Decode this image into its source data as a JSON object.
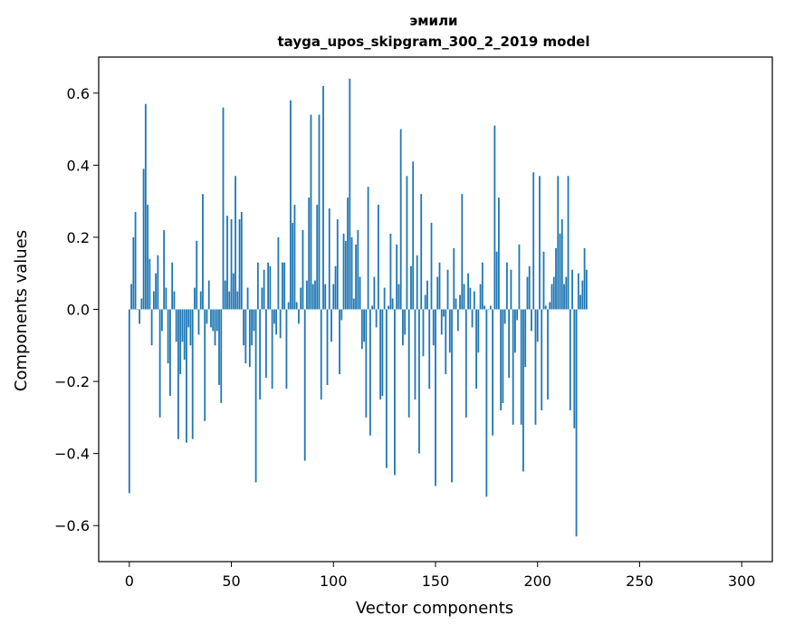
{
  "chart_data": {
    "type": "bar",
    "title": "эмили",
    "subtitle": "tayga_upos_skipgram_300_2_2019 model",
    "xlabel": "Vector components",
    "ylabel": "Components values",
    "xlim": [
      -15,
      315
    ],
    "ylim": [
      -0.7,
      0.7
    ],
    "xticks": [
      0,
      50,
      100,
      150,
      200,
      250,
      300
    ],
    "yticks": [
      -0.6,
      -0.4,
      -0.2,
      0.0,
      0.2,
      0.4,
      0.6
    ],
    "xtick_labels": [
      "0",
      "50",
      "100",
      "150",
      "200",
      "250",
      "300"
    ],
    "ytick_labels": [
      "−0.6",
      "−0.4",
      "−0.2",
      "0.0",
      "0.2",
      "0.4",
      "0.6"
    ],
    "grid": false,
    "bar_color": "#1f77b4",
    "values": [
      -0.51,
      0.07,
      0.2,
      0.27,
      0.0,
      -0.04,
      0.03,
      0.39,
      0.57,
      0.29,
      0.14,
      -0.1,
      0.05,
      0.1,
      0.15,
      -0.3,
      -0.06,
      0.22,
      0.06,
      -0.15,
      -0.24,
      0.13,
      0.05,
      -0.09,
      -0.36,
      -0.18,
      -0.09,
      -0.14,
      -0.37,
      -0.05,
      -0.1,
      -0.36,
      0.06,
      0.19,
      -0.07,
      0.05,
      0.32,
      -0.31,
      -0.04,
      0.08,
      -0.05,
      -0.06,
      -0.1,
      -0.06,
      -0.21,
      -0.26,
      0.56,
      0.08,
      0.26,
      0.05,
      0.25,
      0.1,
      0.37,
      0.05,
      0.25,
      0.27,
      -0.1,
      -0.15,
      0.06,
      -0.16,
      -0.1,
      -0.06,
      -0.48,
      0.13,
      -0.25,
      0.06,
      0.11,
      -0.19,
      0.13,
      0.12,
      -0.22,
      -0.04,
      -0.07,
      0.2,
      -0.08,
      0.13,
      0.13,
      -0.22,
      0.02,
      0.58,
      0.24,
      0.29,
      0.02,
      -0.04,
      0.06,
      0.22,
      -0.42,
      0.08,
      0.31,
      0.54,
      0.07,
      0.08,
      0.29,
      0.54,
      -0.25,
      0.62,
      0.07,
      -0.21,
      0.28,
      -0.09,
      0.07,
      0.12,
      0.25,
      -0.18,
      -0.03,
      0.21,
      0.19,
      0.31,
      0.64,
      0.2,
      0.03,
      0.18,
      0.22,
      0.09,
      -0.11,
      -0.09,
      -0.3,
      0.34,
      -0.35,
      0.01,
      0.09,
      -0.05,
      0.29,
      -0.25,
      -0.24,
      0.06,
      -0.44,
      0.01,
      0.21,
      0.03,
      -0.46,
      0.18,
      0.07,
      0.5,
      -0.1,
      -0.07,
      0.37,
      -0.3,
      0.12,
      0.41,
      -0.25,
      0.15,
      -0.4,
      0.32,
      -0.13,
      0.04,
      0.08,
      -0.22,
      0.24,
      -0.1,
      -0.49,
      0.09,
      0.13,
      -0.07,
      -0.02,
      -0.18,
      0.11,
      -0.12,
      -0.48,
      0.17,
      0.03,
      -0.06,
      0.04,
      0.32,
      0.07,
      -0.3,
      0.1,
      0.06,
      -0.05,
      0.05,
      -0.22,
      -0.12,
      0.07,
      0.13,
      0.01,
      -0.52,
      0.0,
      0.01,
      -0.35,
      0.51,
      0.16,
      0.31,
      -0.28,
      -0.26,
      -0.04,
      0.13,
      -0.19,
      0.11,
      -0.32,
      -0.12,
      -0.03,
      0.18,
      -0.32,
      -0.45,
      -0.16,
      0.09,
      0.12,
      -0.06,
      0.38,
      -0.32,
      -0.09,
      0.37,
      -0.28,
      0.16,
      0.01,
      -0.25,
      0.02,
      0.07,
      0.09,
      0.17,
      0.37,
      0.21,
      0.25,
      0.07,
      0.09,
      0.37,
      -0.28,
      0.11,
      -0.33,
      -0.63,
      0.1,
      0.04,
      0.08,
      0.17,
      0.11
    ],
    "x_start": 0
  }
}
